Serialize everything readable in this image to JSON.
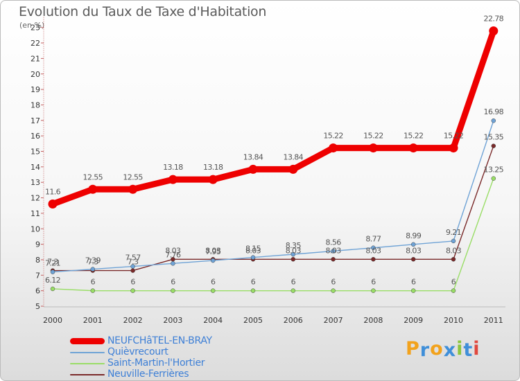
{
  "title": "Evolution du Taux de Taxe d'Habitation",
  "unit_label": "(en %)",
  "brand": {
    "letters": [
      "P",
      "r",
      "o",
      "x",
      "i",
      "t",
      "i"
    ],
    "colors": [
      "#f2a21c",
      "#3f8fd9",
      "#f2a21c",
      "#3f8fd9",
      "#8cc63f",
      "#3f8fd9",
      "#e0483e"
    ]
  },
  "chart_data": {
    "type": "line",
    "title": "Evolution du Taux de Taxe d'Habitation",
    "ylabel": "(en %)",
    "xlabel": "",
    "categories": [
      "2000",
      "2001",
      "2002",
      "2003",
      "2004",
      "2005",
      "2006",
      "2007",
      "2008",
      "2009",
      "2010",
      "2011"
    ],
    "yticks": [
      "5",
      "6",
      "7",
      "8",
      "9",
      "10",
      "11",
      "12",
      "13",
      "14",
      "15",
      "16",
      "17",
      "18",
      "19",
      "20",
      "21",
      "22",
      "23"
    ],
    "ylim": [
      5,
      23.5
    ],
    "grid": false,
    "legend_position": "bottom-left",
    "series": [
      {
        "name": "NEUFCHâTEL-EN-BRAY",
        "color": "#ee0000",
        "values": [
          11.6,
          12.55,
          12.55,
          13.18,
          13.18,
          13.84,
          13.84,
          15.22,
          15.22,
          15.22,
          15.22,
          22.78
        ],
        "labels": [
          "11.6",
          "12.55",
          "12.55",
          "13.18",
          "13.18",
          "13.84",
          "13.84",
          "15.22",
          "15.22",
          "15.22",
          "15.22",
          "22.78"
        ]
      },
      {
        "name": "Quièvrecourt",
        "color": "#6fa3d6",
        "values": [
          7.21,
          7.39,
          7.57,
          7.76,
          7.95,
          8.15,
          8.35,
          8.56,
          8.77,
          8.99,
          9.21,
          16.98
        ],
        "labels": [
          "7.21",
          "7.39",
          "7.57",
          "7.76",
          "7.95",
          "8.15",
          "8.35",
          "8.56",
          "8.77",
          "8.99",
          "9.21",
          "16.98"
        ]
      },
      {
        "name": "Saint-Martin-l'Hortier",
        "color": "#99dd66",
        "values": [
          6.12,
          6,
          6,
          6,
          6,
          6,
          6,
          6,
          6,
          6,
          6,
          13.25
        ],
        "labels": [
          "6.12",
          "6",
          "6",
          "6",
          "6",
          "6",
          "6",
          "6",
          "6",
          "6",
          "6",
          "13.25"
        ]
      },
      {
        "name": "Neuville-Ferrières",
        "color": "#7a2a2a",
        "values": [
          7.3,
          7.3,
          7.3,
          8.03,
          8.03,
          8.03,
          8.03,
          8.03,
          8.03,
          8.03,
          8.03,
          15.35
        ],
        "labels": [
          "7.3",
          "7.3",
          "7.3",
          "8.03",
          "8.03",
          "8.03",
          "8.03",
          "8.03",
          "8.03",
          "8.03",
          "8.03",
          "15.35"
        ]
      }
    ]
  }
}
